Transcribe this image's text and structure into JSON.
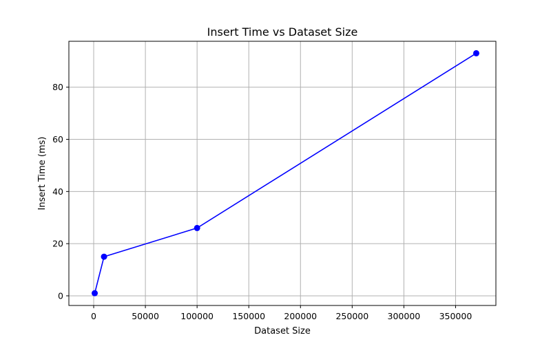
{
  "chart_data": {
    "type": "line",
    "title": "Insert Time vs Dataset Size",
    "xlabel": "Dataset Size",
    "ylabel": "Insert Time (ms)",
    "xlim": [
      -24000,
      389000
    ],
    "ylim": [
      -3.7,
      97.6
    ],
    "xticks": [
      0,
      50000,
      100000,
      150000,
      200000,
      250000,
      300000,
      350000
    ],
    "yticks": [
      0,
      20,
      40,
      60,
      80
    ],
    "grid": true,
    "legend": "none",
    "series": [
      {
        "color": "#0000ff",
        "marker": "circle",
        "x": [
          1000,
          10000,
          100000,
          370000
        ],
        "y": [
          1,
          15,
          26,
          93
        ]
      }
    ]
  }
}
